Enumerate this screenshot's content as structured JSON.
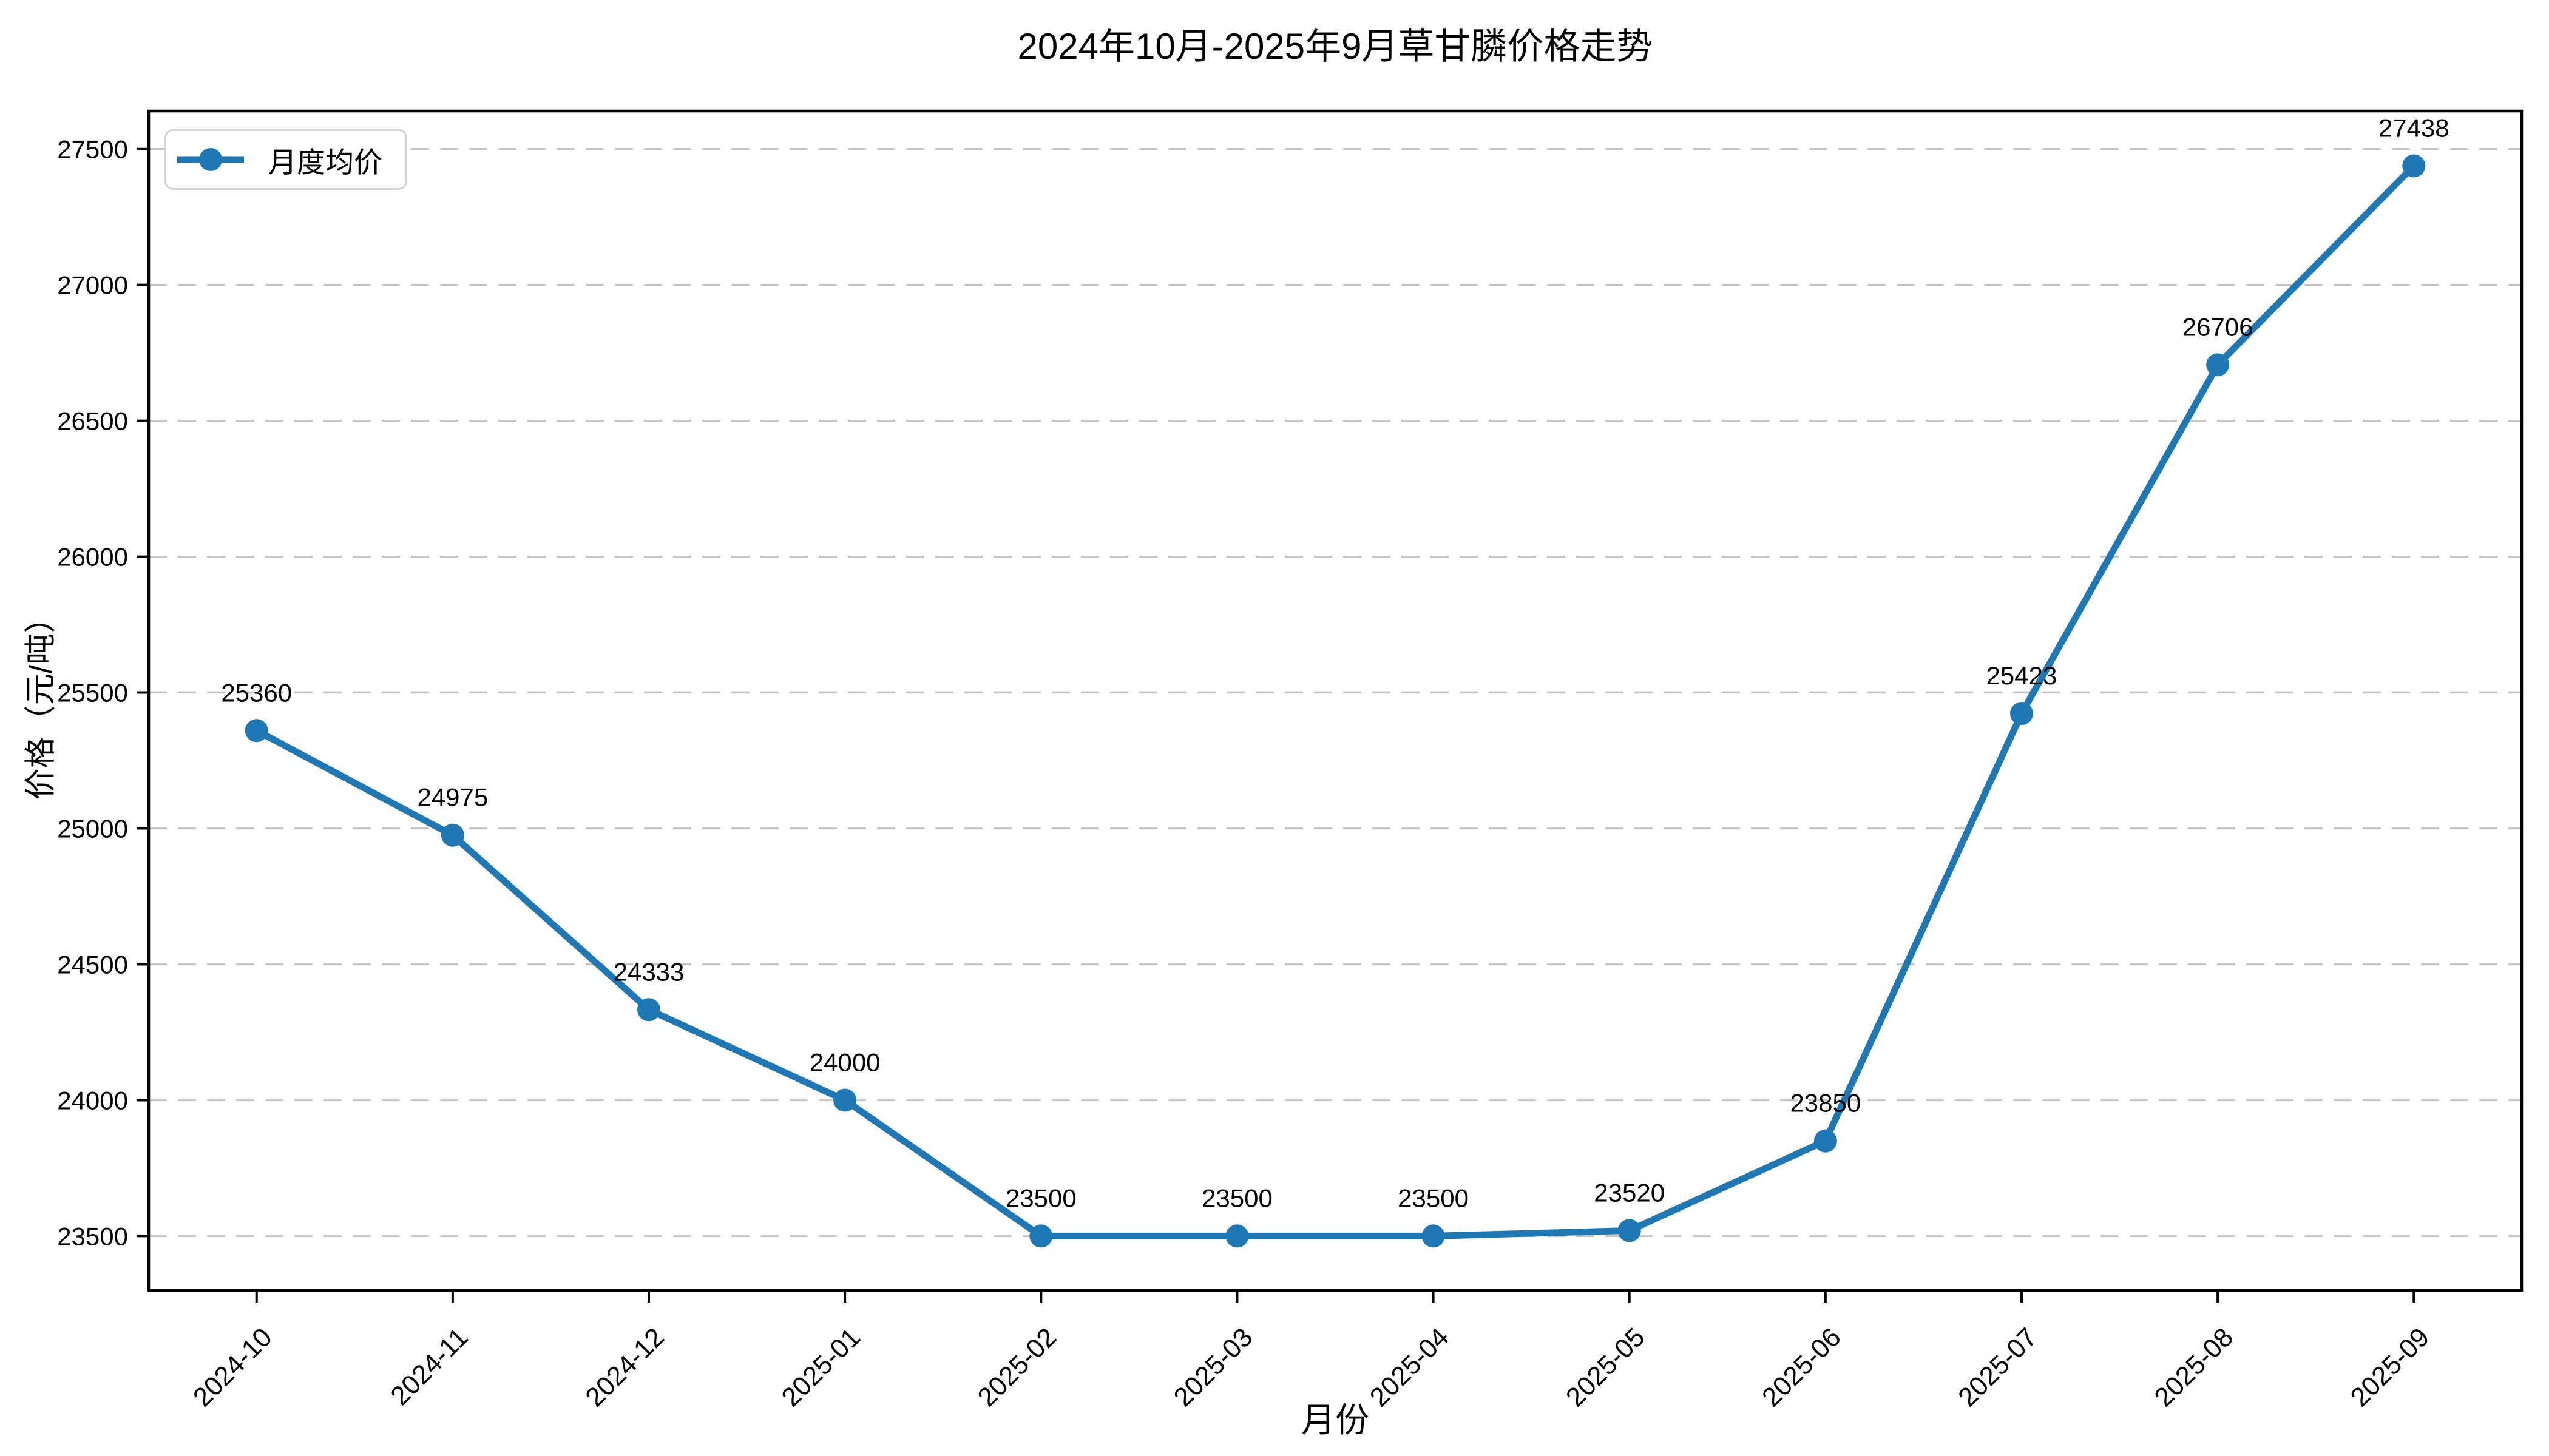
{
  "chart_data": {
    "type": "line",
    "title": "2024年10月-2025年9月草甘膦价格走势",
    "xlabel": "月份",
    "ylabel": "价格（元/吨）",
    "categories": [
      "2024-10",
      "2024-11",
      "2024-12",
      "2025-01",
      "2025-02",
      "2025-03",
      "2025-04",
      "2025-05",
      "2025-06",
      "2025-07",
      "2025-08",
      "2025-09"
    ],
    "series": [
      {
        "name": "月度均价",
        "color": "#1f77b4",
        "marker": "circle",
        "values": [
          25360,
          24975,
          24333,
          24000,
          23500,
          23500,
          23500,
          23520,
          23850,
          25423,
          26706,
          27438
        ]
      }
    ],
    "point_labels_visible": true,
    "yticks": [
      23500,
      24000,
      24500,
      25000,
      25500,
      26000,
      26500,
      27000,
      27500
    ],
    "ylim": [
      23300,
      27640
    ],
    "grid": {
      "axis": "y",
      "linestyle": "dashed",
      "color": "#c6c6c6"
    },
    "legend": {
      "position": "upper left"
    },
    "axes": {
      "background": "#ffffff",
      "spine_color": "#000000",
      "tick_color": "#000000",
      "text_color": "#000000"
    }
  }
}
